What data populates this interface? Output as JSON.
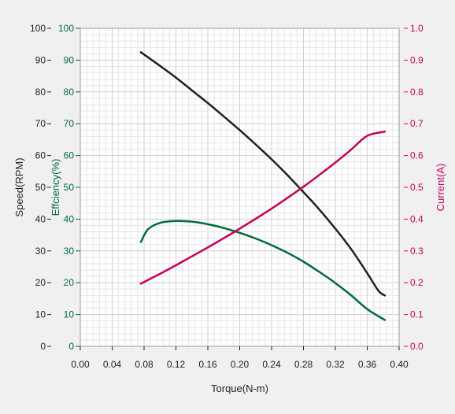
{
  "colors": {
    "background": "#f0f0f0",
    "plot_bg": "#ffffff",
    "grid_major": "#cfcfcf",
    "grid_minor": "#e6e6e6",
    "speed": "#231f20",
    "efficiency": "#006a3a",
    "current": "#c8005a",
    "axis_text": "#222222"
  },
  "chart_data": {
    "type": "line",
    "xlabel": "Torque(N-m)",
    "xlim": [
      0.0,
      0.4
    ],
    "xticks": [
      "0.00",
      "0.04",
      "0.08",
      "0.12",
      "0.16",
      "0.20",
      "0.24",
      "0.28",
      "0.32",
      "0.36",
      "0.40"
    ],
    "grid": true,
    "axes": {
      "speed": {
        "label": "Speed(RPM)",
        "ylim": [
          0,
          100
        ],
        "ticks": [
          "0",
          "10",
          "20",
          "30",
          "40",
          "50",
          "60",
          "70",
          "80",
          "90",
          "100"
        ]
      },
      "efficiency": {
        "label": "Effciency(%)",
        "ylim": [
          0,
          100
        ],
        "ticks": [
          "0",
          "10",
          "20",
          "30",
          "40",
          "50",
          "60",
          "70",
          "80",
          "90",
          "100"
        ]
      },
      "current": {
        "label": "Current(A)",
        "ylim": [
          0,
          1.0
        ],
        "ticks": [
          "0.0",
          "0.1",
          "0.2",
          "0.3",
          "0.4",
          "0.5",
          "0.6",
          "0.7",
          "0.8",
          "0.9",
          "1.0"
        ]
      }
    },
    "series": [
      {
        "key": "speed",
        "axis": "speed",
        "x": [
          0.076,
          0.1,
          0.12,
          0.14,
          0.16,
          0.18,
          0.2,
          0.22,
          0.24,
          0.26,
          0.28,
          0.3,
          0.32,
          0.34,
          0.36,
          0.374,
          0.382
        ],
        "y": [
          92.5,
          88.2,
          84.5,
          80.5,
          76.5,
          72.3,
          68.0,
          63.5,
          58.8,
          53.8,
          48.5,
          43.0,
          37.0,
          30.5,
          23.0,
          17.5,
          16.0
        ]
      },
      {
        "key": "efficiency",
        "axis": "efficiency",
        "x": [
          0.076,
          0.085,
          0.1,
          0.12,
          0.14,
          0.16,
          0.18,
          0.2,
          0.22,
          0.24,
          0.26,
          0.28,
          0.3,
          0.32,
          0.34,
          0.36,
          0.382
        ],
        "y": [
          32.8,
          36.8,
          38.8,
          39.4,
          39.2,
          38.4,
          37.2,
          35.7,
          33.9,
          31.8,
          29.4,
          26.6,
          23.4,
          19.9,
          16.0,
          11.7,
          8.3
        ]
      },
      {
        "key": "current",
        "axis": "current",
        "x": [
          0.076,
          0.1,
          0.12,
          0.14,
          0.16,
          0.18,
          0.2,
          0.22,
          0.24,
          0.26,
          0.28,
          0.3,
          0.32,
          0.34,
          0.36,
          0.382
        ],
        "y": [
          0.197,
          0.228,
          0.255,
          0.283,
          0.311,
          0.34,
          0.37,
          0.401,
          0.433,
          0.467,
          0.502,
          0.539,
          0.578,
          0.619,
          0.662,
          0.675
        ]
      }
    ]
  }
}
